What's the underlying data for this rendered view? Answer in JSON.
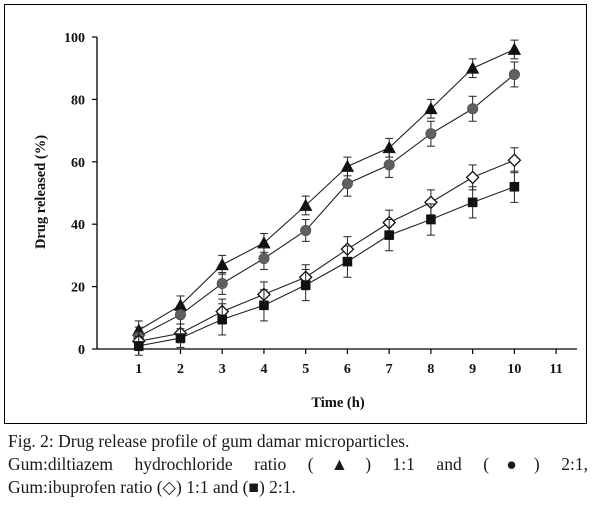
{
  "chart_data": {
    "type": "line",
    "xlabel": "Time (h)",
    "ylabel": "Drug released (%)",
    "x": [
      1,
      2,
      3,
      4,
      5,
      6,
      7,
      8,
      9,
      10
    ],
    "xticks": [
      1,
      2,
      3,
      4,
      5,
      6,
      7,
      8,
      9,
      10,
      11
    ],
    "yticks": [
      0,
      20,
      40,
      60,
      80,
      100
    ],
    "xlim": [
      0,
      11.5
    ],
    "ylim": [
      0,
      100
    ],
    "grid": false,
    "legend": "none",
    "series": [
      {
        "marker": "triangle",
        "color": "#111111",
        "values": [
          6,
          14,
          27,
          34,
          46,
          58.5,
          64.5,
          77,
          90,
          96
        ],
        "errors": [
          3,
          3,
          3,
          3,
          3,
          3,
          3,
          3,
          3,
          3
        ]
      },
      {
        "marker": "circle",
        "color": "#606060",
        "values": [
          4,
          11,
          21,
          29,
          38,
          53,
          59,
          69,
          77,
          88
        ],
        "errors": [
          3,
          3,
          3.5,
          3.5,
          3.5,
          4,
          4,
          4,
          4,
          4
        ]
      },
      {
        "marker": "diamond-open",
        "color": "#111111",
        "values": [
          2.5,
          5,
          12,
          17.5,
          23,
          32,
          40.5,
          47,
          55,
          60.5
        ],
        "errors": [
          3,
          3,
          4,
          4,
          4,
          4,
          4,
          4,
          4,
          4
        ]
      },
      {
        "marker": "square",
        "color": "#111111",
        "values": [
          1,
          3.5,
          9.5,
          14,
          20.5,
          28,
          36.5,
          41.5,
          47,
          52
        ],
        "errors": [
          3,
          3,
          5,
          5,
          5,
          5,
          5,
          5,
          5,
          5
        ]
      }
    ]
  },
  "caption": {
    "line1": "Fig. 2: Drug release profile of gum damar microparticles.",
    "line2": "Gum:diltiazem hydrochloride ratio (▲) 1:1 and (●) 2:1,",
    "line3": "Gum:ibuprofen ratio (◇) 1:1 and (■) 2:1."
  }
}
